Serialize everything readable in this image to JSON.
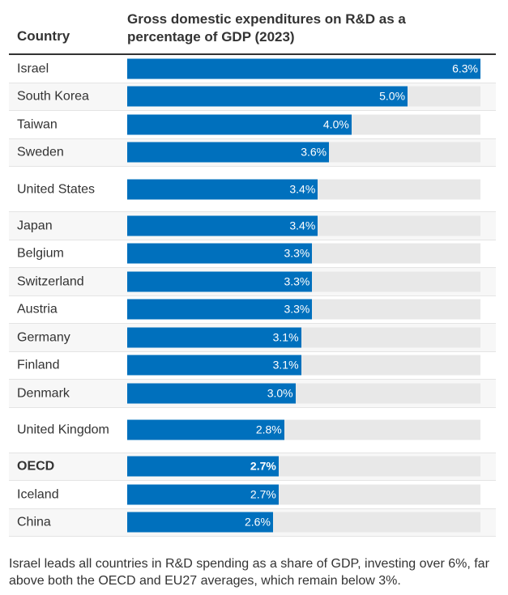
{
  "header": {
    "country_label": "Country",
    "value_label": "Gross domestic expenditures on R&D as a percentage of GDP (2023)"
  },
  "rows": [
    {
      "country": "Israel",
      "value": 6.3,
      "label": "6.3%"
    },
    {
      "country": "South Korea",
      "value": 5.0,
      "label": "5.0%"
    },
    {
      "country": "Taiwan",
      "value": 4.0,
      "label": "4.0%"
    },
    {
      "country": "Sweden",
      "value": 3.6,
      "label": "3.6%"
    },
    {
      "country": "United States",
      "value": 3.4,
      "label": "3.4%"
    },
    {
      "country": "Japan",
      "value": 3.4,
      "label": "3.4%"
    },
    {
      "country": "Belgium",
      "value": 3.3,
      "label": "3.3%"
    },
    {
      "country": "Switzerland",
      "value": 3.3,
      "label": "3.3%"
    },
    {
      "country": "Austria",
      "value": 3.3,
      "label": "3.3%"
    },
    {
      "country": "Germany",
      "value": 3.1,
      "label": "3.1%"
    },
    {
      "country": "Finland",
      "value": 3.1,
      "label": "3.1%"
    },
    {
      "country": "Denmark",
      "value": 3.0,
      "label": "3.0%"
    },
    {
      "country": "United Kingdom",
      "value": 2.8,
      "label": "2.8%"
    },
    {
      "country": "OECD",
      "value": 2.7,
      "label": "2.7%",
      "highlight": true
    },
    {
      "country": "Iceland",
      "value": 2.7,
      "label": "2.7%"
    },
    {
      "country": "China",
      "value": 2.6,
      "label": "2.6%"
    }
  ],
  "caption": "Israel leads all countries in R&D spending as a share of GDP, investing over 6%, far above both the OECD and EU27 averages, which remain below 3%.",
  "colors": {
    "bar": "#0070bd",
    "track": "#e8e8e8",
    "alt_row": "#f7f7f7"
  },
  "chart_data": {
    "type": "bar",
    "orientation": "horizontal",
    "title": "Gross domestic expenditures on R&D as a percentage of GDP (2023)",
    "xlabel": "",
    "ylabel": "Country",
    "categories": [
      "Israel",
      "South Korea",
      "Taiwan",
      "Sweden",
      "United States",
      "Japan",
      "Belgium",
      "Switzerland",
      "Austria",
      "Germany",
      "Finland",
      "Denmark",
      "United Kingdom",
      "OECD",
      "Iceland",
      "China"
    ],
    "values": [
      6.3,
      5.0,
      4.0,
      3.6,
      3.4,
      3.4,
      3.3,
      3.3,
      3.3,
      3.1,
      3.1,
      3.0,
      2.8,
      2.7,
      2.7,
      2.6
    ],
    "value_labels": [
      "6.3%",
      "5.0%",
      "4.0%",
      "3.6%",
      "3.4%",
      "3.4%",
      "3.3%",
      "3.3%",
      "3.3%",
      "3.1%",
      "3.1%",
      "3.0%",
      "2.8%",
      "2.7%",
      "2.7%",
      "2.6%"
    ],
    "unit": "%",
    "xlim": [
      0,
      6.3
    ],
    "grid": false,
    "legend": "none"
  }
}
